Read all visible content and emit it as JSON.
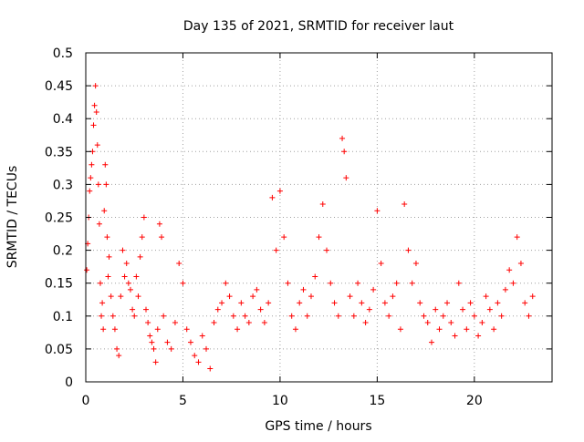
{
  "chart_data": {
    "type": "scatter",
    "title": "Day 135 of 2021, SRMTID for receiver laut",
    "xlabel": "GPS time / hours",
    "ylabel": "SRMTID / TECUs",
    "xlim": [
      0,
      24
    ],
    "ylim": [
      0,
      0.5
    ],
    "x_ticks": [
      0,
      5,
      10,
      15,
      20
    ],
    "x_tick_labels": [
      "0",
      "5",
      "10",
      "15",
      "20"
    ],
    "y_ticks": [
      0,
      0.05,
      0.1,
      0.15,
      0.2,
      0.25,
      0.3,
      0.35,
      0.4,
      0.45,
      0.5
    ],
    "y_tick_labels": [
      "0",
      "0.05",
      "0.1",
      "0.15",
      "0.2",
      "0.25",
      "0.3",
      "0.35",
      "0.4",
      "0.45",
      "0.5"
    ],
    "grid": true,
    "marker": "plus",
    "series": [
      {
        "name": "SRMTID",
        "color": "#ff0000",
        "points": [
          [
            0.05,
            0.17
          ],
          [
            0.1,
            0.21
          ],
          [
            0.15,
            0.25
          ],
          [
            0.2,
            0.29
          ],
          [
            0.25,
            0.31
          ],
          [
            0.3,
            0.33
          ],
          [
            0.35,
            0.35
          ],
          [
            0.4,
            0.39
          ],
          [
            0.45,
            0.42
          ],
          [
            0.5,
            0.45
          ],
          [
            0.55,
            0.41
          ],
          [
            0.6,
            0.36
          ],
          [
            0.65,
            0.3
          ],
          [
            0.7,
            0.24
          ],
          [
            0.75,
            0.15
          ],
          [
            0.8,
            0.1
          ],
          [
            0.85,
            0.12
          ],
          [
            0.9,
            0.08
          ],
          [
            0.95,
            0.26
          ],
          [
            1.0,
            0.33
          ],
          [
            1.05,
            0.3
          ],
          [
            1.1,
            0.22
          ],
          [
            1.15,
            0.16
          ],
          [
            1.2,
            0.19
          ],
          [
            1.3,
            0.13
          ],
          [
            1.4,
            0.1
          ],
          [
            1.5,
            0.08
          ],
          [
            1.6,
            0.05
          ],
          [
            1.7,
            0.04
          ],
          [
            1.8,
            0.13
          ],
          [
            1.9,
            0.2
          ],
          [
            2.0,
            0.16
          ],
          [
            2.1,
            0.18
          ],
          [
            2.2,
            0.15
          ],
          [
            2.3,
            0.14
          ],
          [
            2.4,
            0.11
          ],
          [
            2.5,
            0.1
          ],
          [
            2.6,
            0.16
          ],
          [
            2.7,
            0.13
          ],
          [
            2.8,
            0.19
          ],
          [
            2.9,
            0.22
          ],
          [
            3.0,
            0.25
          ],
          [
            3.1,
            0.11
          ],
          [
            3.2,
            0.09
          ],
          [
            3.3,
            0.07
          ],
          [
            3.4,
            0.06
          ],
          [
            3.5,
            0.05
          ],
          [
            3.6,
            0.03
          ],
          [
            3.7,
            0.08
          ],
          [
            3.8,
            0.24
          ],
          [
            3.9,
            0.22
          ],
          [
            4.0,
            0.1
          ],
          [
            4.2,
            0.06
          ],
          [
            4.4,
            0.05
          ],
          [
            4.6,
            0.09
          ],
          [
            4.8,
            0.18
          ],
          [
            5.0,
            0.15
          ],
          [
            5.2,
            0.08
          ],
          [
            5.4,
            0.06
          ],
          [
            5.6,
            0.04
          ],
          [
            5.8,
            0.03
          ],
          [
            6.0,
            0.07
          ],
          [
            6.2,
            0.05
          ],
          [
            6.4,
            0.02
          ],
          [
            6.6,
            0.09
          ],
          [
            6.8,
            0.11
          ],
          [
            7.0,
            0.12
          ],
          [
            7.2,
            0.15
          ],
          [
            7.4,
            0.13
          ],
          [
            7.6,
            0.1
          ],
          [
            7.8,
            0.08
          ],
          [
            8.0,
            0.12
          ],
          [
            8.2,
            0.1
          ],
          [
            8.4,
            0.09
          ],
          [
            8.6,
            0.13
          ],
          [
            8.8,
            0.14
          ],
          [
            9.0,
            0.11
          ],
          [
            9.2,
            0.09
          ],
          [
            9.4,
            0.12
          ],
          [
            9.6,
            0.28
          ],
          [
            9.8,
            0.2
          ],
          [
            10.0,
            0.29
          ],
          [
            10.2,
            0.22
          ],
          [
            10.4,
            0.15
          ],
          [
            10.6,
            0.1
          ],
          [
            10.8,
            0.08
          ],
          [
            11.0,
            0.12
          ],
          [
            11.2,
            0.14
          ],
          [
            11.4,
            0.1
          ],
          [
            11.6,
            0.13
          ],
          [
            11.8,
            0.16
          ],
          [
            12.0,
            0.22
          ],
          [
            12.2,
            0.27
          ],
          [
            12.4,
            0.2
          ],
          [
            12.6,
            0.15
          ],
          [
            12.8,
            0.12
          ],
          [
            13.0,
            0.1
          ],
          [
            13.2,
            0.37
          ],
          [
            13.3,
            0.35
          ],
          [
            13.4,
            0.31
          ],
          [
            13.6,
            0.13
          ],
          [
            13.8,
            0.1
          ],
          [
            14.0,
            0.15
          ],
          [
            14.2,
            0.12
          ],
          [
            14.4,
            0.09
          ],
          [
            14.6,
            0.11
          ],
          [
            14.8,
            0.14
          ],
          [
            15.0,
            0.26
          ],
          [
            15.2,
            0.18
          ],
          [
            15.4,
            0.12
          ],
          [
            15.6,
            0.1
          ],
          [
            15.8,
            0.13
          ],
          [
            16.0,
            0.15
          ],
          [
            16.2,
            0.08
          ],
          [
            16.4,
            0.27
          ],
          [
            16.6,
            0.2
          ],
          [
            16.8,
            0.15
          ],
          [
            17.0,
            0.18
          ],
          [
            17.2,
            0.12
          ],
          [
            17.4,
            0.1
          ],
          [
            17.6,
            0.09
          ],
          [
            17.8,
            0.06
          ],
          [
            18.0,
            0.11
          ],
          [
            18.2,
            0.08
          ],
          [
            18.4,
            0.1
          ],
          [
            18.6,
            0.12
          ],
          [
            18.8,
            0.09
          ],
          [
            19.0,
            0.07
          ],
          [
            19.2,
            0.15
          ],
          [
            19.4,
            0.11
          ],
          [
            19.6,
            0.08
          ],
          [
            19.8,
            0.12
          ],
          [
            20.0,
            0.1
          ],
          [
            20.2,
            0.07
          ],
          [
            20.4,
            0.09
          ],
          [
            20.6,
            0.13
          ],
          [
            20.8,
            0.11
          ],
          [
            21.0,
            0.08
          ],
          [
            21.2,
            0.12
          ],
          [
            21.4,
            0.1
          ],
          [
            21.6,
            0.14
          ],
          [
            21.8,
            0.17
          ],
          [
            22.0,
            0.15
          ],
          [
            22.2,
            0.22
          ],
          [
            22.4,
            0.18
          ],
          [
            22.6,
            0.12
          ],
          [
            22.8,
            0.1
          ],
          [
            23.0,
            0.13
          ]
        ]
      }
    ]
  }
}
